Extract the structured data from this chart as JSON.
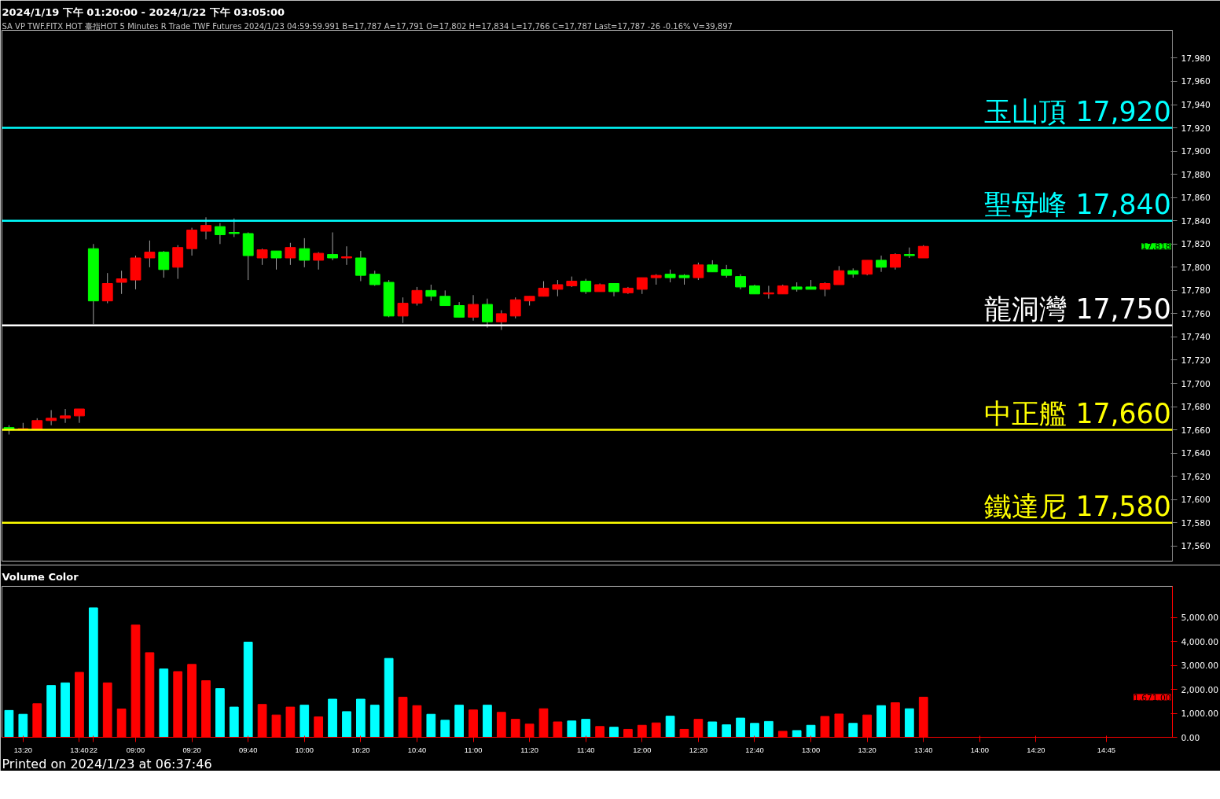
{
  "chart_data": [
    {
      "type": "candlestick",
      "title": "2024/1/19 下午 01:20:00 - 2024/1/22 下午 03:05:00",
      "subtitle": "SA  VP  TWF.FITX HOT  臺指HOT 5 Minutes  R  Trade  TWF  Futures  2024/1/23  04:59:59.991  B=17,787  A=17,791  O=17,802  H=17,834  L=17,766  C=17,787  Last=17,787  -26  -0.16%  V=39,897",
      "categories": [
        null,
        null,
        null,
        null,
        null,
        null,
        null,
        null,
        null,
        null,
        null,
        null,
        null,
        null,
        null,
        null,
        null,
        null,
        null,
        null,
        null,
        null,
        null,
        null,
        null,
        null,
        null,
        null,
        null,
        null,
        null,
        null,
        null,
        null,
        null,
        null,
        null,
        null,
        null,
        null,
        null,
        null,
        null,
        null,
        null,
        null,
        null,
        null,
        null,
        null,
        null,
        null,
        null,
        null,
        null,
        null,
        null,
        null,
        null,
        null,
        null,
        null,
        null,
        null,
        null,
        null,
        null,
        null,
        null,
        null,
        null,
        null,
        null,
        null,
        null,
        null,
        null,
        null,
        null,
        null,
        null,
        null,
        null
      ],
      "ohlc": [
        [
          17662,
          17664,
          17656,
          17660
        ],
        [
          17660,
          17666,
          17660,
          17661
        ],
        [
          17660,
          17670,
          17660,
          17668
        ],
        [
          17668,
          17677,
          17664,
          17670
        ],
        [
          17670,
          17678,
          17666,
          17672
        ],
        [
          17672,
          17678,
          17666,
          17678
        ],
        [
          17816,
          17820,
          17751,
          17771
        ],
        [
          17771,
          17795,
          17769,
          17786
        ],
        [
          17787,
          17797,
          17777,
          17790
        ],
        [
          17789,
          17810,
          17781,
          17808
        ],
        [
          17808,
          17823,
          17800,
          17813
        ],
        [
          17813,
          17814,
          17791,
          17798
        ],
        [
          17800,
          17819,
          17790,
          17817
        ],
        [
          17816,
          17834,
          17810,
          17832
        ],
        [
          17831,
          17843,
          17824,
          17836
        ],
        [
          17835,
          17838,
          17820,
          17828
        ],
        [
          17830,
          17842,
          17826,
          17829
        ],
        [
          17829,
          17830,
          17789,
          17810
        ],
        [
          17808,
          17816,
          17802,
          17815
        ],
        [
          17814,
          17814,
          17798,
          17808
        ],
        [
          17808,
          17821,
          17802,
          17817
        ],
        [
          17816,
          17825,
          17800,
          17806
        ],
        [
          17806,
          17813,
          17798,
          17812
        ],
        [
          17811,
          17830,
          17806,
          17808
        ],
        [
          17808,
          17818,
          17802,
          17809
        ],
        [
          17808,
          17814,
          17788,
          17793
        ],
        [
          17794,
          17797,
          17784,
          17785
        ],
        [
          17787,
          17789,
          17757,
          17758
        ],
        [
          17758,
          17774,
          17752,
          17769
        ],
        [
          17769,
          17783,
          17767,
          17780
        ],
        [
          17780,
          17785,
          17771,
          17775
        ],
        [
          17775,
          17780,
          17767,
          17767
        ],
        [
          17767,
          17770,
          17757,
          17757
        ],
        [
          17757,
          17776,
          17754,
          17768
        ],
        [
          17768,
          17773,
          17748,
          17753
        ],
        [
          17753,
          17763,
          17746,
          17760
        ],
        [
          17758,
          17774,
          17756,
          17772
        ],
        [
          17771,
          17775,
          17767,
          17775
        ],
        [
          17775,
          17788,
          17775,
          17782
        ],
        [
          17781,
          17789,
          17775,
          17785
        ],
        [
          17784,
          17792,
          17783,
          17788
        ],
        [
          17788,
          17790,
          17777,
          17779
        ],
        [
          17779,
          17786,
          17779,
          17785
        ],
        [
          17786,
          17786,
          17775,
          17779
        ],
        [
          17778,
          17783,
          17777,
          17782
        ],
        [
          17781,
          17791,
          17777,
          17791
        ],
        [
          17791,
          17794,
          17785,
          17793
        ],
        [
          17794,
          17798,
          17787,
          17791
        ],
        [
          17793,
          17794,
          17785,
          17791
        ],
        [
          17791,
          17804,
          17789,
          17802
        ],
        [
          17802,
          17806,
          17796,
          17796
        ],
        [
          17798,
          17802,
          17791,
          17793
        ],
        [
          17792,
          17794,
          17781,
          17783
        ],
        [
          17784,
          17785,
          17777,
          17777
        ],
        [
          17777,
          17784,
          17773,
          17778
        ],
        [
          17777,
          17785,
          17777,
          17784
        ],
        [
          17783,
          17787,
          17779,
          17781
        ],
        [
          17783,
          17789,
          17781,
          17781
        ],
        [
          17781,
          17787,
          17775,
          17786
        ],
        [
          17785,
          17801,
          17785,
          17797
        ],
        [
          17797,
          17799,
          17791,
          17794
        ],
        [
          17794,
          17806,
          17793,
          17806
        ],
        [
          17806,
          17810,
          17796,
          17800
        ],
        [
          17800,
          17812,
          17798,
          17811
        ],
        [
          17811,
          17817,
          17808,
          17810
        ],
        [
          17808,
          17819,
          17808,
          17818
        ],
        null,
        null,
        null,
        null,
        null,
        null,
        null,
        null,
        null,
        null,
        null,
        null,
        null,
        null,
        null,
        null,
        null
      ],
      "colors": [
        "#00ff00",
        "#ff0000",
        "#ff0000",
        "#ff0000",
        "#ff0000",
        "#ff0000",
        "#00ff00",
        "#ff0000",
        "#ff0000",
        "#ff0000",
        "#ff0000",
        "#00ff00",
        "#ff0000",
        "#ff0000",
        "#ff0000",
        "#00ff00",
        "#00ff00",
        "#00ff00",
        "#ff0000",
        "#00ff00",
        "#ff0000",
        "#00ff00",
        "#ff0000",
        "#00ff00",
        "#ff0000",
        "#00ff00",
        "#00ff00",
        "#00ff00",
        "#ff0000",
        "#ff0000",
        "#00ff00",
        "#00ff00",
        "#00ff00",
        "#ff0000",
        "#00ff00",
        "#ff0000",
        "#ff0000",
        "#ff0000",
        "#ff0000",
        "#ff0000",
        "#ff0000",
        "#00ff00",
        "#ff0000",
        "#00ff00",
        "#ff0000",
        "#ff0000",
        "#ff0000",
        "#00ff00",
        "#00ff00",
        "#ff0000",
        "#00ff00",
        "#00ff00",
        "#00ff00",
        "#00ff00",
        "#ff0000",
        "#ff0000",
        "#00ff00",
        "#00ff00",
        "#ff0000",
        "#ff0000",
        "#00ff00",
        "#ff0000",
        "#00ff00",
        "#ff0000",
        "#00ff00",
        "#ff0000",
        null,
        null,
        null,
        null,
        null,
        null,
        null,
        null,
        null,
        null,
        null,
        null,
        null,
        null,
        null,
        null,
        null
      ],
      "ylim": [
        17547,
        18004
      ],
      "yticks": [
        {
          "value": 17560,
          "label": "17,560"
        },
        {
          "value": 17580,
          "label": "17,580"
        },
        {
          "value": 17600,
          "label": "17,600"
        },
        {
          "value": 17620,
          "label": "17,620"
        },
        {
          "value": 17640,
          "label": "17,640"
        },
        {
          "value": 17660,
          "label": "17,660"
        },
        {
          "value": 17680,
          "label": "17,680"
        },
        {
          "value": 17700,
          "label": "17,700"
        },
        {
          "value": 17720,
          "label": "17,720"
        },
        {
          "value": 17740,
          "label": "17,740"
        },
        {
          "value": 17760,
          "label": "17,760"
        },
        {
          "value": 17780,
          "label": "17,780"
        },
        {
          "value": 17800,
          "label": "17,800"
        },
        {
          "value": 17820,
          "label": "17,820"
        },
        {
          "value": 17840,
          "label": "17,840"
        },
        {
          "value": 17860,
          "label": "17,860"
        },
        {
          "value": 17880,
          "label": "17,880"
        },
        {
          "value": 17900,
          "label": "17,900"
        },
        {
          "value": 17920,
          "label": "17,920"
        },
        {
          "value": 17940,
          "label": "17,940"
        },
        {
          "value": 17960,
          "label": "17,960"
        },
        {
          "value": 17980,
          "label": "17,980"
        }
      ],
      "ref_lines": [
        {
          "axis": "y",
          "value": 17920,
          "label": "玉山頂 17,920",
          "color": "#00ffff"
        },
        {
          "axis": "y",
          "value": 17840,
          "label": "聖母峰 17,840",
          "color": "#00ffff"
        },
        {
          "axis": "y",
          "value": 17750,
          "label": "龍洞灣 17,750",
          "color": "#ffffff"
        },
        {
          "axis": "y",
          "value": 17660,
          "label": "中正艦 17,660",
          "color": "#ffff00"
        },
        {
          "axis": "y",
          "value": 17580,
          "label": "鐵達尼 17,580",
          "color": "#ffff00"
        }
      ],
      "annotations": [
        "17,818"
      ],
      "tick_labels": "y"
    },
    {
      "type": "bar",
      "title": "Volume Color",
      "categories": [
        null,
        "13:20",
        null,
        null,
        null,
        "13:40",
        "22",
        null,
        null,
        "09:00",
        null,
        null,
        null,
        "09:20",
        null,
        null,
        null,
        "09:40",
        null,
        null,
        null,
        "10:00",
        null,
        null,
        null,
        "10:20",
        null,
        null,
        null,
        "10:40",
        null,
        null,
        null,
        "11:00",
        null,
        null,
        null,
        "11:20",
        null,
        null,
        null,
        "11:40",
        null,
        null,
        null,
        "12:00",
        null,
        null,
        null,
        "12:20",
        null,
        null,
        null,
        "12:40",
        null,
        null,
        null,
        "13:00",
        null,
        null,
        null,
        "13:20",
        null,
        null,
        null,
        "13:40",
        null,
        null,
        null,
        "14:00",
        null,
        null,
        null,
        "14:20",
        null,
        null,
        null,
        null,
        "14:45",
        null,
        null,
        null,
        null
      ],
      "values": [
        1120,
        960,
        1400,
        2160,
        2270,
        2710,
        5400,
        2270,
        1180,
        4680,
        3530,
        2850,
        2740,
        3040,
        2360,
        2030,
        1260,
        3970,
        1370,
        930,
        1260,
        1340,
        850,
        1590,
        1070,
        1590,
        1340,
        3290,
        1670,
        1320,
        960,
        710,
        1340,
        1140,
        1340,
        1040,
        750,
        550,
        1190,
        640,
        680,
        750,
        450,
        420,
        330,
        500,
        600,
        880,
        330,
        750,
        640,
        520,
        800,
        580,
        660,
        250,
        280,
        500,
        870,
        970,
        580,
        930,
        1320,
        1440,
        1190,
        1671,
        null,
        null,
        null,
        null,
        null,
        null,
        null,
        null,
        null,
        null,
        null,
        null,
        null,
        null,
        null,
        null,
        null
      ],
      "colors": [
        "#00ffff",
        "#00ffff",
        "#ff0000",
        "#00ffff",
        "#00ffff",
        "#ff0000",
        "#00ffff",
        "#ff0000",
        "#ff0000",
        "#ff0000",
        "#ff0000",
        "#00ffff",
        "#ff0000",
        "#ff0000",
        "#ff0000",
        "#00ffff",
        "#00ffff",
        "#00ffff",
        "#ff0000",
        "#ff0000",
        "#ff0000",
        "#00ffff",
        "#ff0000",
        "#00ffff",
        "#00ffff",
        "#00ffff",
        "#00ffff",
        "#00ffff",
        "#ff0000",
        "#ff0000",
        "#00ffff",
        "#00ffff",
        "#00ffff",
        "#ff0000",
        "#00ffff",
        "#ff0000",
        "#ff0000",
        "#ff0000",
        "#ff0000",
        "#ff0000",
        "#00ffff",
        "#00ffff",
        "#ff0000",
        "#00ffff",
        "#ff0000",
        "#ff0000",
        "#ff0000",
        "#00ffff",
        "#ff0000",
        "#ff0000",
        "#00ffff",
        "#00ffff",
        "#00ffff",
        "#00ffff",
        "#00ffff",
        "#ff0000",
        "#00ffff",
        "#00ffff",
        "#ff0000",
        "#ff0000",
        "#00ffff",
        "#ff0000",
        "#00ffff",
        "#ff0000",
        "#00ffff",
        "#ff0000",
        null,
        null,
        null,
        null,
        null,
        null,
        null,
        null,
        null,
        null,
        null,
        null,
        null,
        null,
        null,
        null,
        null
      ],
      "ylim": [
        0,
        6300
      ],
      "yticks": [
        {
          "value": 0,
          "label": "0.00"
        },
        {
          "value": 1000,
          "label": "1,000.00"
        },
        {
          "value": 2000,
          "label": "2,000.00"
        },
        {
          "value": 3000,
          "label": "3,000.00"
        },
        {
          "value": 4000,
          "label": "4,000.00"
        },
        {
          "value": 5000,
          "label": "5,000.00"
        }
      ],
      "annotations": [
        "1,671.00",
        "Printed on 2024/1/23 at 06:37:46"
      ]
    }
  ]
}
